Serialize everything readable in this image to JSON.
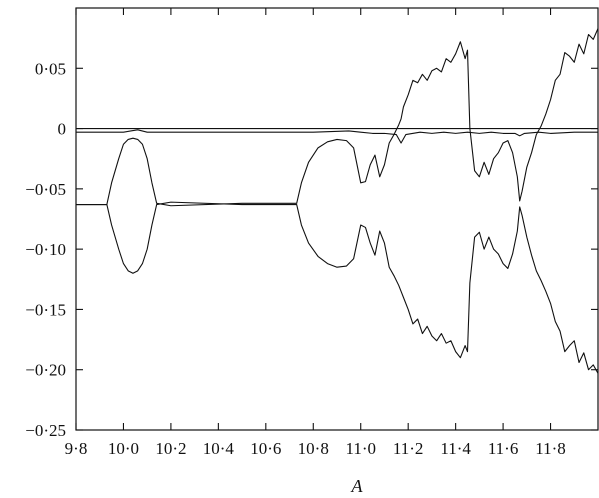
{
  "chart_data": {
    "type": "line",
    "title": "",
    "xlabel": "A",
    "ylabel": "",
    "xlim": [
      9.8,
      12.0
    ],
    "ylim": [
      -0.25,
      0.1
    ],
    "grid": false,
    "legend": "none",
    "xticks": [
      {
        "value": 9.8,
        "label": "9·8"
      },
      {
        "value": 10.0,
        "label": "10·0"
      },
      {
        "value": 10.2,
        "label": "10·2"
      },
      {
        "value": 10.4,
        "label": "10·4"
      },
      {
        "value": 10.6,
        "label": "10·6"
      },
      {
        "value": 10.8,
        "label": "10·8"
      },
      {
        "value": 11.0,
        "label": "11·0"
      },
      {
        "value": 11.2,
        "label": "11·2"
      },
      {
        "value": 11.4,
        "label": "11·4"
      },
      {
        "value": 11.6,
        "label": "11·6"
      },
      {
        "value": 11.8,
        "label": "11·8"
      }
    ],
    "yticks": [
      {
        "value": 0.05,
        "label": "0·05"
      },
      {
        "value": 0.0,
        "label": "0"
      },
      {
        "value": -0.05,
        "label": "−0·05"
      },
      {
        "value": -0.1,
        "label": "−0·10"
      },
      {
        "value": -0.15,
        "label": "−0·15"
      },
      {
        "value": -0.2,
        "label": "−0·20"
      },
      {
        "value": -0.25,
        "label": "−0·25"
      }
    ],
    "series": [
      {
        "x": [
          9.8,
          9.93,
          9.95,
          9.98,
          10.0,
          10.02,
          10.04,
          10.06,
          10.08,
          10.1,
          10.12,
          10.14,
          10.2,
          10.5,
          10.73,
          10.75,
          10.78,
          10.82,
          10.86,
          10.9,
          10.94,
          10.97,
          11.0,
          11.02,
          11.04,
          11.06,
          11.08,
          11.1,
          11.12,
          11.14,
          11.16,
          11.17,
          11.18,
          11.2,
          11.22,
          11.24,
          11.26,
          11.28,
          11.3,
          11.32,
          11.34,
          11.36,
          11.38,
          11.4,
          11.42,
          11.44,
          11.45,
          11.46,
          11.48,
          11.5,
          11.52,
          11.54,
          11.56,
          11.58,
          11.6,
          11.62,
          11.64,
          11.66,
          11.67,
          11.68,
          11.7,
          11.72,
          11.74,
          11.76,
          11.78,
          11.8,
          11.82,
          11.84,
          11.86,
          11.88,
          11.9,
          11.92,
          11.94,
          11.96,
          11.98,
          12.0
        ],
        "y": [
          -0.063,
          -0.063,
          -0.045,
          -0.025,
          -0.013,
          -0.009,
          -0.008,
          -0.009,
          -0.013,
          -0.025,
          -0.045,
          -0.062,
          -0.064,
          -0.062,
          -0.062,
          -0.045,
          -0.028,
          -0.016,
          -0.011,
          -0.009,
          -0.01,
          -0.016,
          -0.045,
          -0.044,
          -0.03,
          -0.022,
          -0.04,
          -0.03,
          -0.012,
          -0.005,
          0.003,
          0.008,
          0.018,
          0.028,
          0.04,
          0.038,
          0.045,
          0.04,
          0.048,
          0.05,
          0.047,
          0.058,
          0.055,
          0.062,
          0.072,
          0.058,
          0.065,
          0.0,
          -0.035,
          -0.04,
          -0.028,
          -0.038,
          -0.025,
          -0.02,
          -0.012,
          -0.01,
          -0.02,
          -0.04,
          -0.06,
          -0.052,
          -0.032,
          -0.02,
          -0.005,
          0.002,
          0.012,
          0.024,
          0.04,
          0.045,
          0.063,
          0.06,
          0.055,
          0.07,
          0.062,
          0.078,
          0.074,
          0.083
        ]
      },
      {
        "x": [
          9.8,
          9.93,
          9.95,
          9.98,
          10.0,
          10.02,
          10.04,
          10.06,
          10.08,
          10.1,
          10.12,
          10.14,
          10.2,
          10.5,
          10.73,
          10.75,
          10.78,
          10.82,
          10.86,
          10.9,
          10.94,
          10.97,
          11.0,
          11.02,
          11.04,
          11.06,
          11.08,
          11.1,
          11.12,
          11.14,
          11.16,
          11.17,
          11.18,
          11.2,
          11.22,
          11.24,
          11.26,
          11.28,
          11.3,
          11.32,
          11.34,
          11.36,
          11.38,
          11.4,
          11.42,
          11.44,
          11.45,
          11.46,
          11.48,
          11.5,
          11.52,
          11.54,
          11.56,
          11.58,
          11.6,
          11.62,
          11.64,
          11.66,
          11.67,
          11.68,
          11.7,
          11.72,
          11.74,
          11.76,
          11.78,
          11.8,
          11.82,
          11.84,
          11.86,
          11.88,
          11.9,
          11.92,
          11.94,
          11.96,
          11.98,
          12.0
        ],
        "y": [
          -0.063,
          -0.063,
          -0.08,
          -0.1,
          -0.112,
          -0.118,
          -0.12,
          -0.118,
          -0.112,
          -0.1,
          -0.08,
          -0.063,
          -0.061,
          -0.063,
          -0.063,
          -0.08,
          -0.095,
          -0.106,
          -0.112,
          -0.115,
          -0.114,
          -0.108,
          -0.08,
          -0.082,
          -0.095,
          -0.105,
          -0.085,
          -0.095,
          -0.115,
          -0.122,
          -0.13,
          -0.135,
          -0.14,
          -0.15,
          -0.162,
          -0.158,
          -0.17,
          -0.164,
          -0.172,
          -0.176,
          -0.17,
          -0.178,
          -0.176,
          -0.185,
          -0.19,
          -0.18,
          -0.185,
          -0.128,
          -0.09,
          -0.086,
          -0.1,
          -0.09,
          -0.1,
          -0.104,
          -0.112,
          -0.116,
          -0.104,
          -0.085,
          -0.065,
          -0.072,
          -0.09,
          -0.105,
          -0.118,
          -0.126,
          -0.135,
          -0.145,
          -0.16,
          -0.168,
          -0.185,
          -0.18,
          -0.176,
          -0.194,
          -0.186,
          -0.2,
          -0.196,
          -0.203
        ]
      },
      {
        "x": [
          9.8,
          10.0,
          10.06,
          10.1,
          10.2,
          10.5,
          10.8,
          10.95,
          11.0,
          11.05,
          11.1,
          11.15,
          11.17,
          11.19,
          11.25,
          11.3,
          11.35,
          11.4,
          11.45,
          11.5,
          11.55,
          11.6,
          11.65,
          11.67,
          11.69,
          11.75,
          11.8,
          11.9,
          12.0
        ],
        "y": [
          -0.003,
          -0.003,
          -0.001,
          -0.003,
          -0.003,
          -0.003,
          -0.003,
          -0.002,
          -0.003,
          -0.004,
          -0.004,
          -0.005,
          -0.012,
          -0.005,
          -0.003,
          -0.004,
          -0.003,
          -0.004,
          -0.003,
          -0.004,
          -0.003,
          -0.004,
          -0.004,
          -0.006,
          -0.004,
          -0.003,
          -0.004,
          -0.003,
          -0.003
        ]
      },
      {
        "x": [
          9.8,
          12.0
        ],
        "y": [
          0.0,
          0.0
        ]
      }
    ]
  }
}
